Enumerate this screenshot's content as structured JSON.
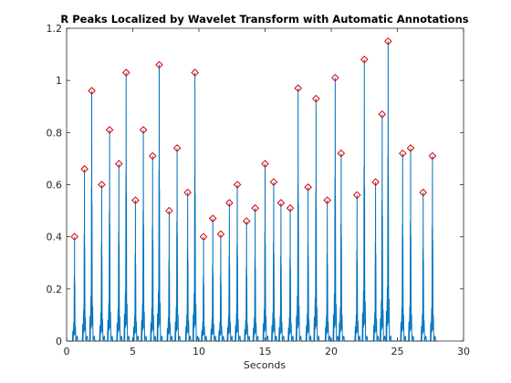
{
  "figure": {
    "background": "#ffffff"
  },
  "chart_data": {
    "type": "line",
    "title": "R Peaks Localized by Wavelet Transform with Automatic Annotations",
    "xlabel": "Seconds",
    "ylabel": "",
    "xlim": [
      0,
      30
    ],
    "ylim": [
      0,
      1.2
    ],
    "xticks": [
      0,
      5,
      10,
      15,
      20,
      25,
      30
    ],
    "xtick_labels": [
      "0",
      "5",
      "10",
      "15",
      "20",
      "25",
      "30"
    ],
    "yticks": [
      0,
      0.2,
      0.4,
      0.6,
      0.8,
      1,
      1.2
    ],
    "ytick_labels": [
      "0",
      "0.2",
      "0.4",
      "0.6",
      "0.8",
      "1",
      "1.2"
    ],
    "grid": false,
    "series": [
      {
        "kind": "signal",
        "color": "#0072BD",
        "peaks_x": [
          0.6,
          1.35,
          1.9,
          2.65,
          3.25,
          3.95,
          4.5,
          5.2,
          5.8,
          6.5,
          7.0,
          7.75,
          8.35,
          9.15,
          9.7,
          10.35,
          11.05,
          11.65,
          12.3,
          12.9,
          13.6,
          14.25,
          15.0,
          15.65,
          16.2,
          16.9,
          17.5,
          18.25,
          18.85,
          19.7,
          20.3,
          20.75,
          21.95,
          22.5,
          23.35,
          23.85,
          24.3,
          25.4,
          26.0,
          26.95,
          27.65
        ],
        "peaks_y": [
          0.4,
          0.66,
          0.96,
          0.6,
          0.81,
          0.68,
          1.03,
          0.54,
          0.81,
          0.71,
          1.06,
          0.5,
          0.74,
          0.57,
          1.03,
          0.4,
          0.47,
          0.41,
          0.53,
          0.6,
          0.46,
          0.51,
          0.68,
          0.61,
          0.53,
          0.51,
          0.97,
          0.59,
          0.93,
          0.54,
          1.01,
          0.72,
          0.56,
          1.08,
          0.61,
          0.87,
          1.15,
          0.72,
          0.74,
          0.57,
          0.71
        ]
      },
      {
        "kind": "markers",
        "marker": "diamond",
        "color": "#D90000",
        "source": "peaks"
      }
    ]
  }
}
